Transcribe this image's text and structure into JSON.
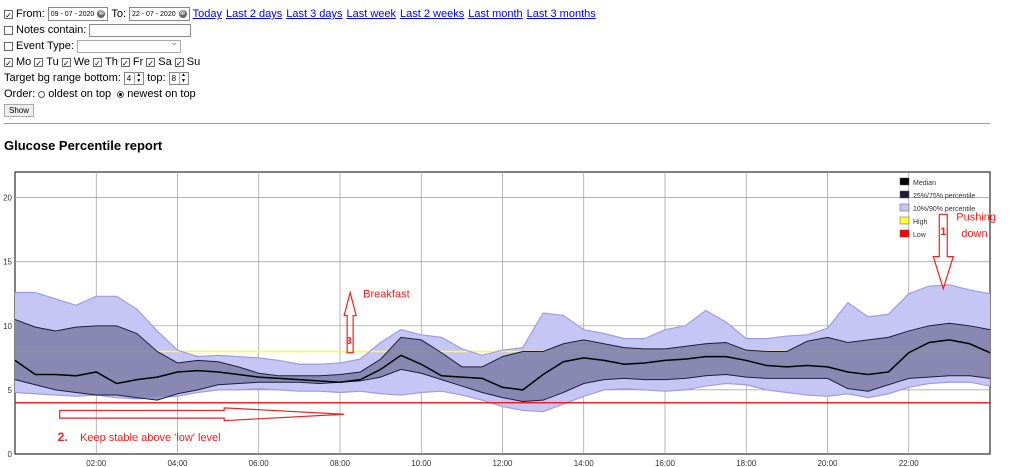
{
  "form": {
    "from_label": "From:",
    "from_value": "09 - 07 - 2020",
    "to_label": "To:",
    "to_value": "22 - 07 - 2020",
    "clear_glyph": "⊗",
    "quick_links": [
      "Today",
      "Last 2 days",
      "Last 3 days",
      "Last week",
      "Last 2 weeks",
      "Last month",
      "Last 3 months"
    ],
    "notes_label": "Notes contain:",
    "event_type_label": "Event Type:",
    "days": [
      "Mo",
      "Tu",
      "We",
      "Th",
      "Fr",
      "Sa",
      "Su"
    ],
    "target_label": "Target bg range bottom:",
    "bottom_value": "4",
    "top_label": "top:",
    "top_value": "8",
    "order_label": "Order:",
    "order_options": [
      "oldest on top",
      "newest on top"
    ],
    "order_selected": 1,
    "show_button": "Show",
    "checked_glyph": "✓"
  },
  "report_title": "Glucose Percentile report",
  "chart_data": {
    "type": "area",
    "x_ticks": [
      "02:00",
      "04:00",
      "06:00",
      "08:00",
      "10:00",
      "12:00",
      "14:00",
      "16:00",
      "18:00",
      "20:00",
      "22:00"
    ],
    "x_tick_hours": [
      2,
      4,
      6,
      8,
      10,
      12,
      14,
      16,
      18,
      20,
      22
    ],
    "xlim": [
      0,
      24
    ],
    "ylim": [
      0,
      22
    ],
    "y_ticks": [
      0,
      5,
      10,
      15,
      20
    ],
    "grid": true,
    "hours": [
      0,
      0.5,
      1,
      1.5,
      2,
      2.5,
      3,
      3.5,
      4,
      4.5,
      5,
      5.5,
      6,
      6.5,
      7,
      7.5,
      8,
      8.5,
      9,
      9.5,
      10,
      10.5,
      11,
      11.5,
      12,
      12.5,
      13,
      13.5,
      14,
      14.5,
      15,
      15.5,
      16,
      16.5,
      17,
      17.5,
      18,
      18.5,
      19,
      19.5,
      20,
      20.5,
      21,
      21.5,
      22,
      22.5,
      23,
      23.5,
      24
    ],
    "p10": [
      4.8,
      4.7,
      4.6,
      4.5,
      4.6,
      4.4,
      4.3,
      4.4,
      4.5,
      4.8,
      5.0,
      5.0,
      5.1,
      5.0,
      4.9,
      4.9,
      4.8,
      4.9,
      4.7,
      4.6,
      4.8,
      4.9,
      4.6,
      4.2,
      3.7,
      3.4,
      3.3,
      3.9,
      4.5,
      5.0,
      5.1,
      5.0,
      4.9,
      5.0,
      5.3,
      5.5,
      5.4,
      5.0,
      4.8,
      4.6,
      4.5,
      4.7,
      4.4,
      4.7,
      5.2,
      5.5,
      5.6,
      5.6,
      5.3
    ],
    "p25": [
      5.8,
      5.4,
      5.0,
      4.8,
      4.6,
      4.6,
      4.4,
      4.2,
      4.7,
      5.0,
      5.4,
      5.5,
      5.6,
      5.6,
      5.6,
      5.5,
      5.6,
      5.7,
      6.0,
      6.6,
      6.3,
      5.8,
      5.3,
      4.8,
      4.4,
      4.1,
      4.2,
      4.8,
      5.5,
      5.8,
      5.9,
      5.8,
      5.8,
      5.9,
      6.1,
      6.2,
      6.0,
      5.9,
      5.9,
      5.9,
      5.9,
      5.1,
      4.9,
      5.4,
      5.9,
      6.0,
      6.1,
      6.1,
      5.9
    ],
    "median": [
      7.3,
      6.2,
      6.2,
      6.1,
      6.4,
      5.5,
      5.8,
      6.0,
      6.4,
      6.5,
      6.4,
      6.2,
      6.0,
      5.9,
      5.8,
      5.7,
      5.6,
      5.8,
      6.6,
      7.7,
      7.0,
      6.1,
      6.0,
      5.9,
      5.2,
      5.0,
      6.2,
      7.2,
      7.5,
      7.3,
      7.0,
      7.1,
      7.3,
      7.4,
      7.6,
      7.6,
      7.3,
      6.9,
      6.8,
      6.9,
      6.8,
      6.4,
      6.2,
      6.4,
      7.9,
      8.7,
      8.9,
      8.6,
      7.9
    ],
    "p75": [
      10.5,
      9.9,
      9.6,
      9.9,
      10.0,
      10.0,
      9.4,
      8.0,
      7.1,
      7.3,
      7.2,
      6.8,
      6.3,
      6.1,
      6.1,
      6.1,
      6.2,
      6.4,
      7.4,
      9.1,
      8.9,
      7.9,
      6.8,
      6.8,
      7.6,
      8.0,
      8.0,
      8.6,
      8.9,
      8.6,
      8.3,
      8.2,
      8.2,
      8.4,
      8.6,
      8.7,
      8.1,
      8.0,
      8.0,
      8.8,
      9.1,
      8.7,
      8.9,
      9.1,
      9.6,
      10.0,
      10.2,
      10.0,
      9.7
    ],
    "p90": [
      12.6,
      12.6,
      12.1,
      11.6,
      12.3,
      12.3,
      11.3,
      9.6,
      8.1,
      7.6,
      7.7,
      7.6,
      7.5,
      7.3,
      7.0,
      7.0,
      7.1,
      7.4,
      8.7,
      9.7,
      9.3,
      9.1,
      8.2,
      7.7,
      8.1,
      8.3,
      11.0,
      10.8,
      9.7,
      9.4,
      9.0,
      9.0,
      9.7,
      10.0,
      11.2,
      10.3,
      9.0,
      9.0,
      9.2,
      9.3,
      9.8,
      11.8,
      10.7,
      10.9,
      12.5,
      13.1,
      13.2,
      12.8,
      12.5
    ],
    "high": 8,
    "low": 4,
    "colors": {
      "p10_90": "#c6c6f5",
      "p10_90_stroke": "#9c9ce6",
      "p25_75": "#7c7ca6",
      "p25_75_stroke": "#1c1c3c",
      "median": "#000000",
      "high": "#ffff33",
      "low": "#ff0000",
      "annotation": "#ee2222"
    },
    "legend": [
      "Median",
      "25%/75% percentile",
      "10%/90% percentile",
      "High",
      "Low"
    ],
    "annotations": {
      "a1_number": "1",
      "a1_text_1": "Pushing",
      "a1_text_2": "down",
      "a2_number": "2.",
      "a2_text": "Keep stable above 'low' level",
      "a3_number": "3",
      "a3_text": "Breakfast"
    }
  }
}
